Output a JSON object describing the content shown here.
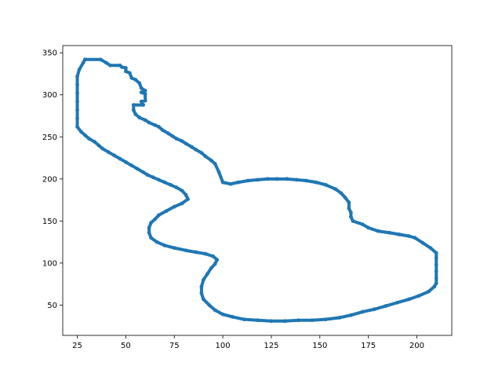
{
  "chart_data": {
    "type": "scatter",
    "title": "",
    "xlabel": "",
    "ylabel": "",
    "xlim": [
      17.5,
      218
    ],
    "ylim": [
      14,
      358.6
    ],
    "grid": false,
    "xticks": [
      25,
      50,
      75,
      100,
      125,
      150,
      175,
      200
    ],
    "yticks": [
      50,
      100,
      150,
      200,
      250,
      300,
      350
    ],
    "series": [
      {
        "color": "#1f77b4",
        "points": [
          [
            29,
            342
          ],
          [
            37,
            342
          ],
          [
            40,
            338
          ],
          [
            42,
            335
          ],
          [
            47,
            335
          ],
          [
            48,
            333
          ],
          [
            50,
            332
          ],
          [
            50,
            328
          ],
          [
            52,
            326
          ],
          [
            53,
            320
          ],
          [
            55,
            318
          ],
          [
            57,
            314
          ],
          [
            58,
            308
          ],
          [
            60,
            305
          ],
          [
            58,
            303
          ],
          [
            60,
            301
          ],
          [
            60,
            293
          ],
          [
            58,
            292
          ],
          [
            59,
            288
          ],
          [
            54,
            288
          ],
          [
            54,
            282
          ],
          [
            55,
            277
          ],
          [
            57,
            273
          ],
          [
            60,
            270
          ],
          [
            62,
            267
          ],
          [
            65,
            264
          ],
          [
            67,
            262
          ],
          [
            69,
            258
          ],
          [
            72,
            254
          ],
          [
            74,
            251
          ],
          [
            76,
            248
          ],
          [
            79,
            245
          ],
          [
            81,
            242
          ],
          [
            84,
            238
          ],
          [
            86,
            235
          ],
          [
            89,
            231
          ],
          [
            91,
            227
          ],
          [
            94,
            222
          ],
          [
            96,
            218
          ],
          [
            98,
            208
          ],
          [
            100,
            196
          ],
          [
            104,
            194
          ],
          [
            108,
            196
          ],
          [
            113,
            198
          ],
          [
            118,
            199
          ],
          [
            123,
            200
          ],
          [
            128,
            200
          ],
          [
            133,
            200
          ],
          [
            138,
            199
          ],
          [
            143,
            198
          ],
          [
            148,
            196
          ],
          [
            153,
            193
          ],
          [
            158,
            188
          ],
          [
            161,
            183
          ],
          [
            163,
            178
          ],
          [
            165,
            172
          ],
          [
            165,
            165
          ],
          [
            166,
            160
          ],
          [
            166,
            155
          ],
          [
            167,
            150
          ],
          [
            172,
            146
          ],
          [
            175,
            142
          ],
          [
            180,
            138
          ],
          [
            186,
            136
          ],
          [
            191,
            134
          ],
          [
            196,
            132
          ],
          [
            199,
            130
          ],
          [
            203,
            124
          ],
          [
            207,
            118
          ],
          [
            210,
            112
          ],
          [
            210,
            106
          ],
          [
            210,
            98
          ],
          [
            210,
            90
          ],
          [
            210,
            82
          ],
          [
            210,
            76
          ],
          [
            209,
            72
          ],
          [
            206,
            66
          ],
          [
            201,
            61
          ],
          [
            196,
            57
          ],
          [
            190,
            53
          ],
          [
            184,
            49
          ],
          [
            178,
            45
          ],
          [
            172,
            42
          ],
          [
            166,
            38
          ],
          [
            160,
            35
          ],
          [
            153,
            33
          ],
          [
            146,
            32
          ],
          [
            139,
            32
          ],
          [
            132,
            31
          ],
          [
            125,
            31
          ],
          [
            118,
            32
          ],
          [
            111,
            33
          ],
          [
            105,
            36
          ],
          [
            100,
            39
          ],
          [
            96,
            44
          ],
          [
            93,
            50
          ],
          [
            90,
            57
          ],
          [
            89,
            64
          ],
          [
            89,
            72
          ],
          [
            90,
            80
          ],
          [
            92,
            87
          ],
          [
            94,
            94
          ],
          [
            96,
            99
          ],
          [
            97,
            104
          ],
          [
            95,
            108
          ],
          [
            91,
            111
          ],
          [
            86,
            113
          ],
          [
            81,
            115
          ],
          [
            75,
            118
          ],
          [
            70,
            121
          ],
          [
            66,
            125
          ],
          [
            63,
            130
          ],
          [
            62,
            136
          ],
          [
            62,
            142
          ],
          [
            63,
            148
          ],
          [
            65,
            152
          ],
          [
            67,
            157
          ],
          [
            71,
            162
          ],
          [
            75,
            167
          ],
          [
            79,
            171
          ],
          [
            82,
            176
          ],
          [
            81,
            181
          ],
          [
            79,
            186
          ],
          [
            76,
            190
          ],
          [
            73,
            193
          ],
          [
            70,
            196
          ],
          [
            67,
            199
          ],
          [
            64,
            202
          ],
          [
            61,
            205
          ],
          [
            59,
            208
          ],
          [
            56,
            212
          ],
          [
            53,
            216
          ],
          [
            50,
            220
          ],
          [
            47,
            224
          ],
          [
            44,
            228
          ],
          [
            41,
            232
          ],
          [
            38,
            236
          ],
          [
            36,
            240
          ],
          [
            34,
            244
          ],
          [
            31,
            248
          ],
          [
            29,
            252
          ],
          [
            27,
            256
          ],
          [
            25,
            262
          ],
          [
            25,
            272
          ],
          [
            25,
            282
          ],
          [
            25,
            292
          ],
          [
            25,
            302
          ],
          [
            25,
            312
          ],
          [
            25,
            322
          ],
          [
            26,
            330
          ],
          [
            28,
            338
          ],
          [
            29,
            342
          ]
        ]
      }
    ]
  }
}
